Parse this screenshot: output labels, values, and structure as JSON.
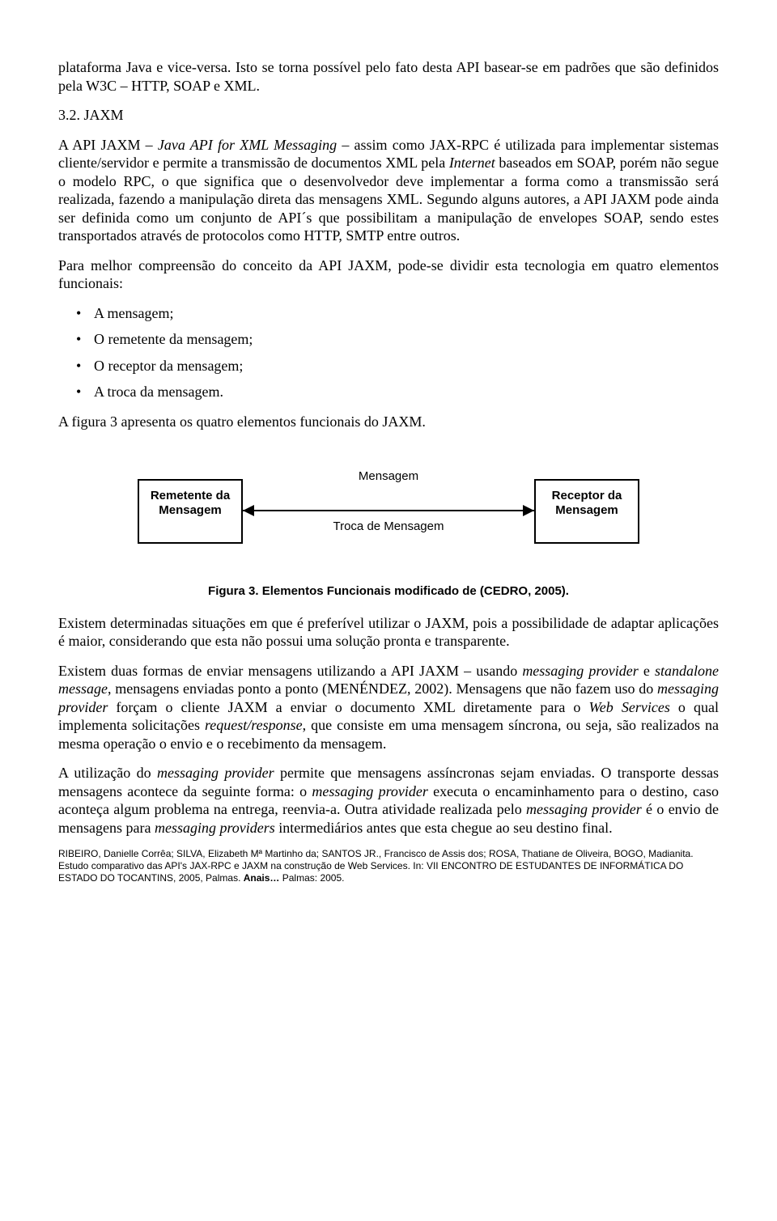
{
  "para_intro": "plataforma Java e vice-versa. Isto se torna possível pelo fato desta API basear-se em padrões que são definidos pela W3C – HTTP, SOAP e XML.",
  "section_number": "3.2. JAXM",
  "para_jaxm_1a": "A API JAXM – ",
  "para_jaxm_1b": "Java API for XML Messaging",
  "para_jaxm_1c": " – assim como JAX-RPC é utilizada para implementar sistemas cliente/servidor e permite a transmissão de documentos XML pela ",
  "para_jaxm_1d": "Internet",
  "para_jaxm_1e": " baseados em SOAP, porém não segue o modelo RPC, o que significa que o desenvolvedor deve implementar a forma como a transmissão será realizada, fazendo a manipulação direta das mensagens XML. Segundo alguns autores, a API JAXM pode ainda ser definida como um conjunto de API´s que possibilitam a manipulação de envelopes SOAP, sendo estes transportados através de protocolos como HTTP, SMTP entre outros.",
  "para_jaxm_2": "Para melhor compreensão do conceito da API JAXM, pode-se dividir esta tecnologia em quatro elementos funcionais:",
  "bullets": [
    "A mensagem;",
    "O remetente da mensagem;",
    "O receptor da mensagem;",
    "A troca da mensagem."
  ],
  "para_fig_intro": "A figura 3 apresenta os quatro elementos funcionais do JAXM.",
  "diagram": {
    "left_box": "Remetente da Mensagem",
    "right_box": "Receptor da Mensagem",
    "top_label": "Mensagem",
    "bottom_label": "Troca de Mensagem",
    "box_border_color": "#000000",
    "line_color": "#000000",
    "font_family": "Arial",
    "font_size_pt": 11
  },
  "fig_caption": "Figura 3. Elementos Funcionais modificado de (CEDRO, 2005).",
  "para_after_fig_1": "Existem determinadas situações em que é preferível utilizar o JAXM, pois a possibilidade de adaptar aplicações é maior, considerando que esta não possui uma solução pronta e transparente.",
  "para_after_fig_2a": "Existem duas formas de enviar mensagens utilizando a API JAXM – usando ",
  "para_after_fig_2b": "messaging provider",
  "para_after_fig_2c": " e ",
  "para_after_fig_2d": "standalone message",
  "para_after_fig_2e": ", mensagens enviadas ponto a ponto (MENÉNDEZ, 2002). Mensagens que não fazem uso do ",
  "para_after_fig_2f": "messaging provider",
  "para_after_fig_2g": " forçam o cliente JAXM a enviar o documento XML diretamente para o ",
  "para_after_fig_2h": "Web Services",
  "para_after_fig_2i": " o qual implementa solicitações ",
  "para_after_fig_2j": "request/response",
  "para_after_fig_2k": ", que consiste em uma mensagem síncrona, ou seja, são realizados na mesma operação o envio e o recebimento da mensagem.",
  "para_after_fig_3a": "A utilização do ",
  "para_after_fig_3b": "messaging provider",
  "para_after_fig_3c": " permite que mensagens assíncronas sejam enviadas. O transporte dessas mensagens acontece da seguinte forma: o ",
  "para_after_fig_3d": "messaging provider",
  "para_after_fig_3e": " executa o encaminhamento para o destino, caso aconteça algum problema na entrega, reenvia-a. Outra atividade realizada pelo ",
  "para_after_fig_3f": "messaging provider",
  "para_after_fig_3g": " é o envio de mensagens para ",
  "para_after_fig_3h": "messaging providers",
  "para_after_fig_3i": " intermediários antes que esta chegue ao seu destino final.",
  "footer_line1": "RIBEIRO, Danielle Corrêa; SILVA, Elizabeth Mª Martinho da; SANTOS JR., Francisco de Assis dos; ROSA, Thatiane de Oliveira, BOGO, Madianita.  Estudo comparativo das API's JAX-RPC e JAXM na construção de Web Services. In: VII ENCONTRO DE ESTUDANTES DE INFORMÁTICA DO ESTADO DO TOCANTINS, 2005, Palmas. ",
  "footer_bold": "Anais…",
  "footer_line2": " Palmas: 2005."
}
